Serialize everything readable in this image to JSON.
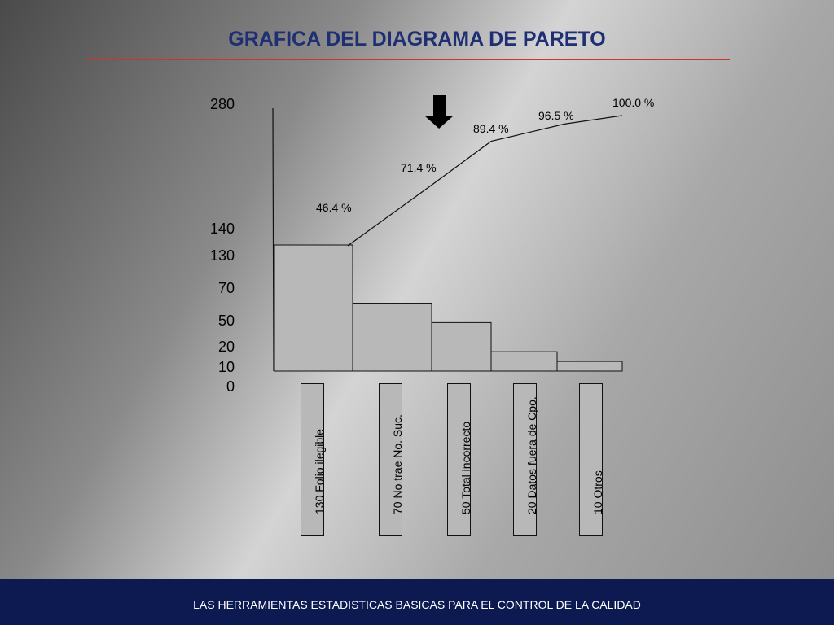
{
  "slide": {
    "title": "GRAFICA DEL DIAGRAMA DE PARETO",
    "footer": "LAS HERRAMIENTAS ESTADISTICAS BASICAS PARA EL CONTROL DE LA CALIDAD"
  },
  "colors": {
    "title": "#1f2f74",
    "rule": "#c9362e",
    "footer_bg": "#0d1a52",
    "bar_fill": "#b8b8b8"
  },
  "chart_data": {
    "type": "bar",
    "title": "",
    "categories": [
      "Folio ilegible",
      "No trae No. Suc.",
      "Total incorrecto",
      "Datos fuera de Cpo.",
      "Otros"
    ],
    "values": [
      130,
      70,
      50,
      20,
      10
    ],
    "category_labels": [
      "130  Folio ilegible",
      "70  No trae No. Suc.",
      "50  Total incorrecto",
      "20 Datos fuera de Cpo.",
      "10  Otros"
    ],
    "cumulative_labels": [
      "46.4 %",
      "71.4 %",
      "89.4 %",
      "96.5  %",
      "100.0 %"
    ],
    "cumulative_percent": [
      46.4,
      71.4,
      89.4,
      96.5,
      100.0
    ],
    "y_ticks": [
      "280",
      "140",
      "130",
      "70",
      "50",
      "20",
      "10",
      "0"
    ],
    "ylim": [
      0,
      280
    ],
    "annotation_icon": "down-arrow-icon"
  }
}
